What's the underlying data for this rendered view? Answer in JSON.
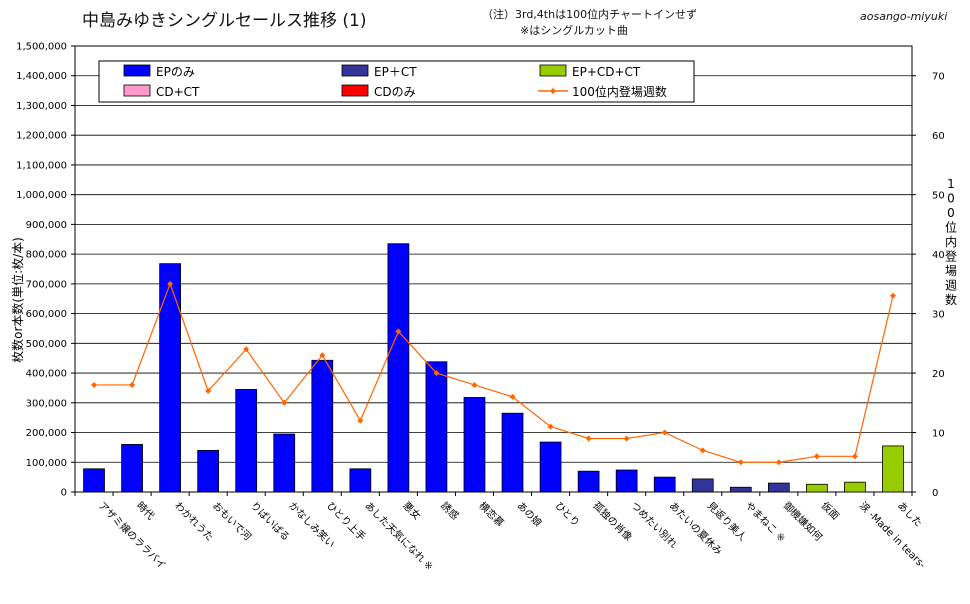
{
  "header": {
    "title": "中島みゆきシングルセールス推移 (1)",
    "note_line1": "（注）3rd,4thは100位内チャートインせず",
    "note_line2": "※はシングルカット曲",
    "author": "aosango-miyuki"
  },
  "colors": {
    "EP": "#0000ff",
    "EP_CT": "#333399",
    "EP_CD_CT": "#99cc00",
    "CD_CT": "#ff99cc",
    "CD": "#ff0000",
    "line": "#ff6600"
  },
  "chart_data": {
    "type": "bar",
    "title": "中島みゆきシングルセールス推移 (1)",
    "ylabel": "枚数or本数(単位:枚/本)",
    "y2label": "100位内登場週数",
    "ylim": [
      0,
      1500000
    ],
    "y2lim": [
      0,
      75
    ],
    "y_ticks": [
      "0",
      "100,000",
      "200,000",
      "300,000",
      "400,000",
      "500,000",
      "600,000",
      "700,000",
      "800,000",
      "900,000",
      "1,000,000",
      "1,100,000",
      "1,200,000",
      "1,300,000",
      "1,400,000",
      "1,500,000"
    ],
    "y2_ticks": [
      "0",
      "10",
      "20",
      "30",
      "40",
      "50",
      "60",
      "70"
    ],
    "grid": true,
    "legend_position": "top",
    "categories": [
      "アザミ嬢のララバイ",
      "時代",
      "わかれうた",
      "おもいで河",
      "りばいばる",
      "かなしみ笑い",
      "ひとり上手",
      "あした天気になれ ※",
      "悪女",
      "誘惑",
      "横恋慕",
      "あの娘",
      "ひとり",
      "孤独の肖像",
      "つめたい別れ",
      "あたいの夏休み",
      "見返り美人",
      "やまねこ ※",
      "御機嫌如何",
      "仮面",
      "涙 -Made in tears-",
      "あした"
    ],
    "series": [
      {
        "name": "EPのみ",
        "color_key": "EP",
        "values": [
          78000,
          160000,
          768000,
          140000,
          345000,
          195000,
          443000,
          78000,
          835000,
          438000,
          318000,
          265000,
          168000,
          70000,
          74000,
          50000,
          null,
          null,
          null,
          null,
          null,
          null
        ]
      },
      {
        "name": "EP＋CT",
        "color_key": "EP_CT",
        "values": [
          null,
          null,
          null,
          null,
          null,
          null,
          null,
          null,
          null,
          null,
          null,
          null,
          null,
          null,
          null,
          null,
          44000,
          16000,
          30000,
          null,
          null,
          null
        ]
      },
      {
        "name": "EP+CD+CT",
        "color_key": "EP_CD_CT",
        "values": [
          null,
          null,
          null,
          null,
          null,
          null,
          null,
          null,
          null,
          null,
          null,
          null,
          null,
          null,
          null,
          null,
          null,
          null,
          null,
          26000,
          33000,
          155000
        ]
      },
      {
        "name": "CD+CT",
        "color_key": "CD_CT",
        "values": [
          null,
          null,
          null,
          null,
          null,
          null,
          null,
          null,
          null,
          null,
          null,
          null,
          null,
          null,
          null,
          null,
          null,
          null,
          null,
          null,
          null,
          null
        ]
      },
      {
        "name": "CDのみ",
        "color_key": "CD",
        "values": [
          null,
          null,
          null,
          null,
          null,
          null,
          null,
          null,
          null,
          null,
          null,
          null,
          null,
          null,
          null,
          null,
          null,
          null,
          null,
          null,
          null,
          null
        ]
      }
    ],
    "line_series": {
      "name": "100位内登場週数",
      "axis": "secondary",
      "values": [
        18,
        18,
        35,
        17,
        24,
        15,
        23,
        12,
        27,
        20,
        18,
        16,
        11,
        9,
        9,
        10,
        7,
        5,
        5,
        6,
        6,
        33
      ]
    }
  }
}
